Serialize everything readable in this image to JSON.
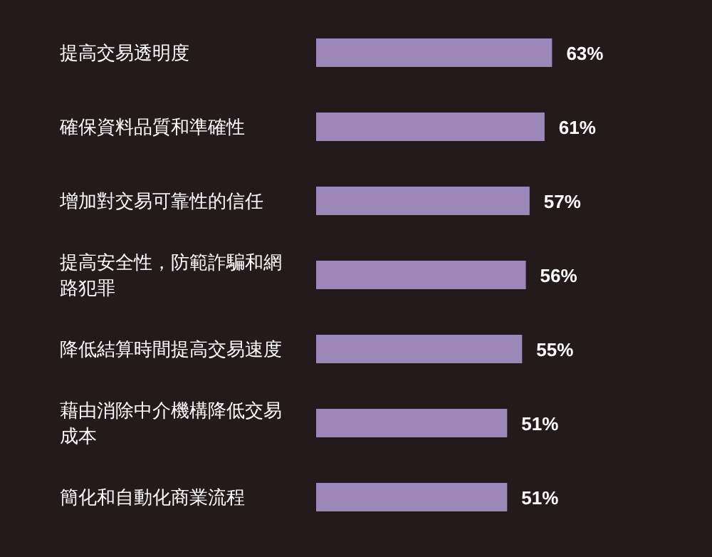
{
  "chart_data": {
    "type": "bar",
    "orientation": "horizontal",
    "categories": [
      "提高交易透明度",
      "確保資料品質和準確性",
      "增加對交易可靠性的信任",
      "提高安全性，防範詐騙和網路犯罪",
      "降低結算時間提高交易速度",
      "藉由消除中介機構降低交易成本",
      "簡化和自動化商業流程"
    ],
    "values": [
      63,
      61,
      57,
      56,
      55,
      51,
      51
    ],
    "value_labels": [
      "63%",
      "61%",
      "57%",
      "56%",
      "55%",
      "51%",
      "51%"
    ],
    "color": "#9d86b8"
  }
}
